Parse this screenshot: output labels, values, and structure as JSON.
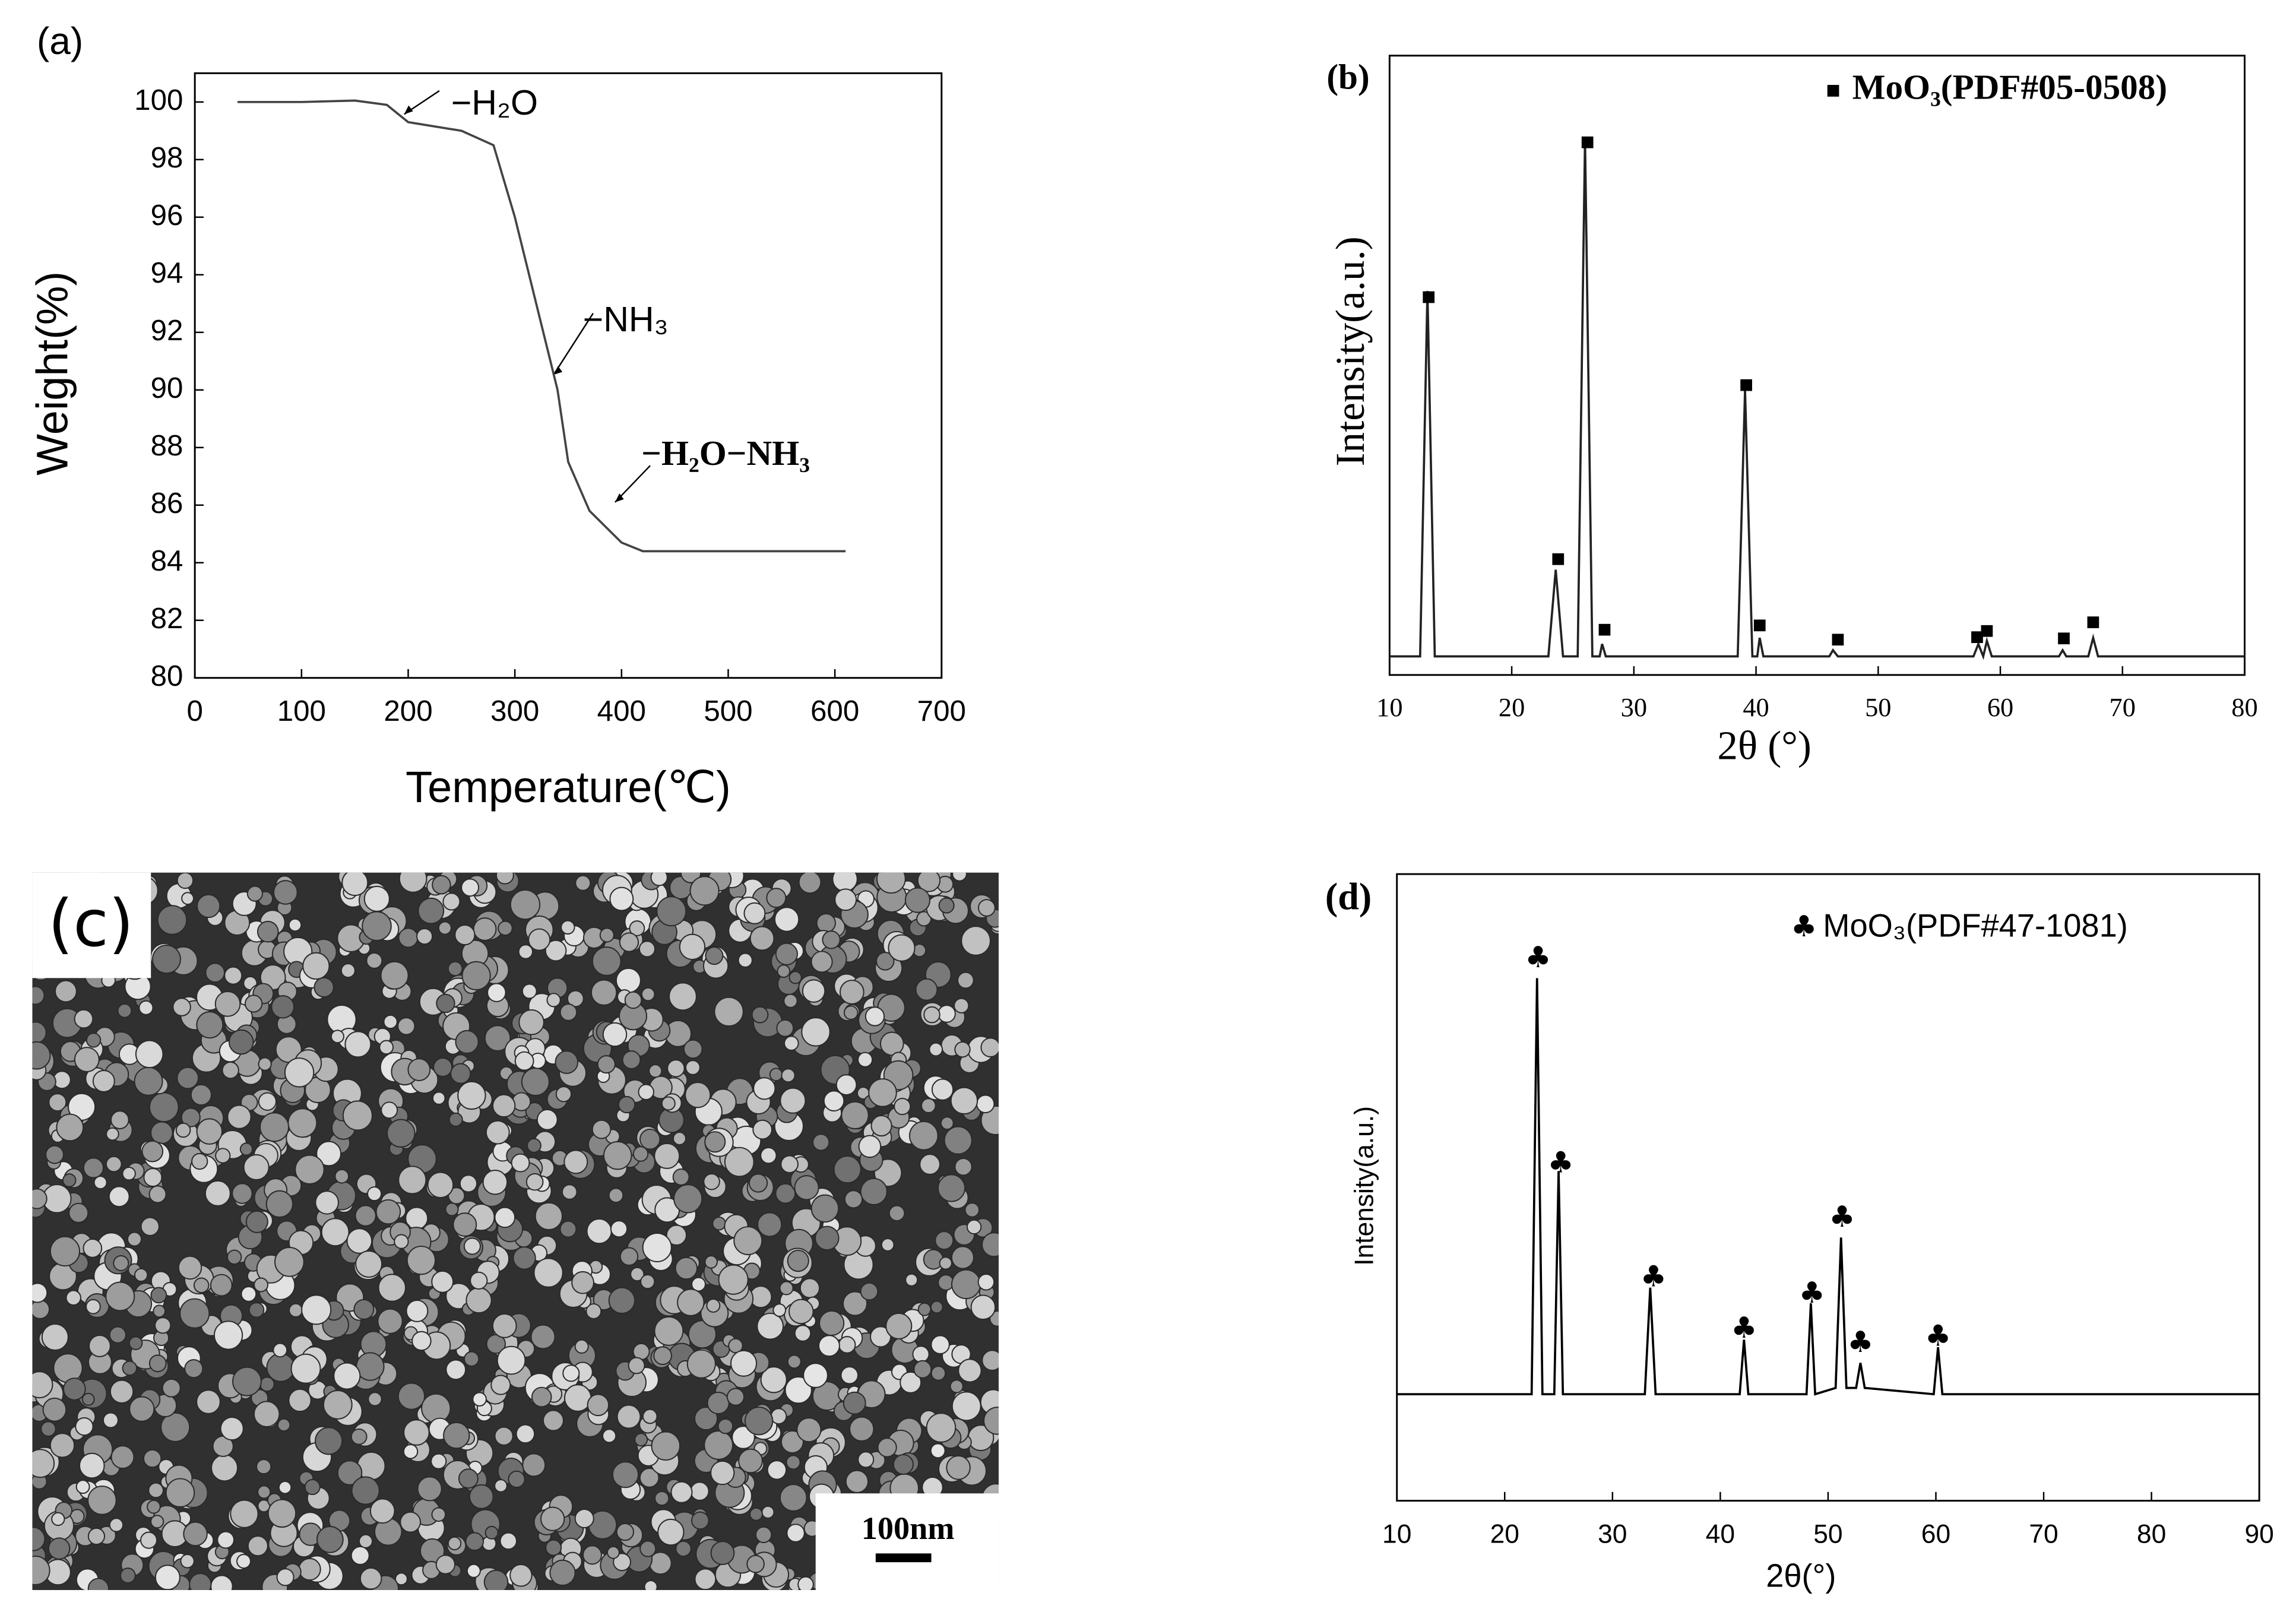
{
  "chart_data": [
    {
      "type": "line",
      "panel_label": "(a)",
      "x_label": "Temperature(℃)",
      "y_label": "Weight(%)",
      "xlim": [
        0,
        700
      ],
      "xticks": [
        0,
        100,
        200,
        300,
        400,
        500,
        600,
        700
      ],
      "ylim": [
        80,
        101
      ],
      "yticks": [
        80,
        82,
        84,
        86,
        88,
        90,
        92,
        94,
        96,
        98,
        100
      ],
      "annotations": [
        "−H₂O",
        "−NH₃",
        "−H₂O−NH₃"
      ],
      "series": [
        {
          "color": "#444444",
          "marker": "line",
          "x": [
            40,
            100,
            150,
            180,
            200,
            250,
            280,
            300,
            320,
            340,
            350,
            370,
            400,
            420,
            500,
            610
          ],
          "values": [
            100,
            100,
            100.05,
            99.9,
            99.3,
            99,
            98.5,
            96,
            93,
            90,
            87.5,
            85.8,
            84.7,
            84.4,
            84.4,
            84.4
          ]
        }
      ]
    },
    {
      "type": "line",
      "panel_label": "(b)",
      "x_label": "2θ (°)",
      "y_label": "Intensity(a.u.)",
      "xlim": [
        10,
        80
      ],
      "xticks": [
        10,
        20,
        30,
        40,
        50,
        60,
        70,
        80
      ],
      "ylim": [
        0,
        100
      ],
      "series": [
        {
          "color": "#222222",
          "marker": "line",
          "x": [
            10,
            12.5,
            13.1,
            13.7,
            16,
            23,
            23.6,
            24.2,
            25.4,
            26,
            26.6,
            27.2,
            27.4,
            27.7,
            30,
            38.5,
            39.1,
            39.7,
            40.1,
            40.3,
            40.6,
            46,
            46.3,
            46.7,
            57.8,
            58.2,
            58.6,
            58.9,
            59.3,
            64.8,
            65.1,
            65.4,
            67.2,
            67.6,
            68,
            80
          ],
          "values": [
            3,
            3,
            62,
            3,
            3,
            3,
            17,
            3,
            3,
            86.5,
            3,
            3,
            5,
            3,
            3,
            3,
            46,
            3,
            3,
            6,
            3,
            3,
            4,
            3,
            3,
            5,
            3,
            5.5,
            3,
            3,
            4,
            3,
            3,
            6,
            3,
            3
          ]
        },
        {
          "name": "MoO₃(PDF#05-0508)",
          "color": "#000000",
          "marker": "square",
          "x": [
            13.2,
            23.8,
            26.2,
            27.6,
            39.2,
            40.3,
            46.7,
            58.1,
            58.9,
            65.2,
            67.6
          ],
          "values": [
            61,
            18.7,
            86,
            7.3,
            46.8,
            8,
            5.7,
            6.1,
            7.1,
            5.9,
            8.5
          ]
        }
      ]
    },
    {
      "type": "line",
      "panel_label": "(d)",
      "x_label": "2θ(°)",
      "y_label": "Intensity(a.u.)",
      "xlim": [
        10,
        90
      ],
      "xticks": [
        10,
        20,
        30,
        40,
        50,
        60,
        70,
        80,
        90
      ],
      "ylim": [
        0,
        100
      ],
      "series": [
        {
          "color": "#000000",
          "marker": "line",
          "x": [
            10,
            22.5,
            23,
            23.5,
            24.6,
            25,
            25.4,
            33,
            33.5,
            34,
            41.8,
            42.2,
            42.6,
            48,
            48.4,
            48.8,
            50.7,
            51.2,
            51.7,
            52.6,
            53,
            53.4,
            59.8,
            60.2,
            60.6,
            90
          ],
          "values": [
            17,
            17,
            83.4,
            17,
            17,
            52.6,
            17,
            17,
            34,
            17,
            17,
            25.7,
            17,
            17,
            31.5,
            17,
            18,
            42,
            18,
            18,
            22,
            18,
            17,
            24.5,
            17,
            17
          ]
        },
        {
          "name": "MoO₃(PDF#47-1081)",
          "color": "#000000",
          "marker": "club",
          "x": [
            23.1,
            25.2,
            33.8,
            42.2,
            48.5,
            51.3,
            53,
            60.2
          ],
          "values": [
            86.4,
            53.7,
            35.5,
            27.3,
            32.9,
            45,
            25,
            26
          ]
        }
      ]
    }
  ],
  "sem_image": {
    "label": "(c)",
    "scale_bar": "100nm"
  }
}
